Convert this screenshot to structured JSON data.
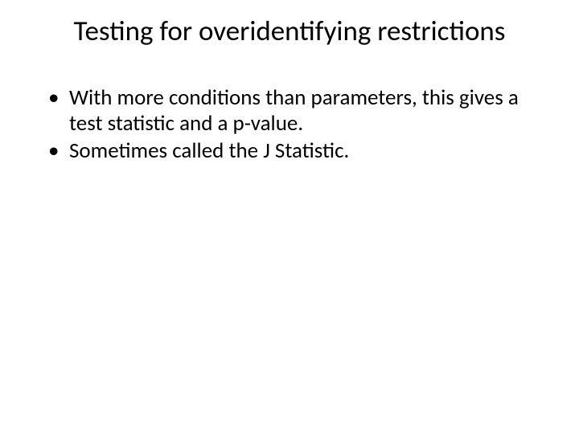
{
  "slide": {
    "title": "Testing for overidentifying restrictions",
    "bullets": [
      "With more conditions than parameters, this gives a test statistic and a p-value.",
      "Sometimes called the J Statistic."
    ],
    "background_color": "#ffffff",
    "text_color": "#000000",
    "title_fontsize": 35,
    "body_fontsize": 27,
    "font_family": "Calibri"
  }
}
